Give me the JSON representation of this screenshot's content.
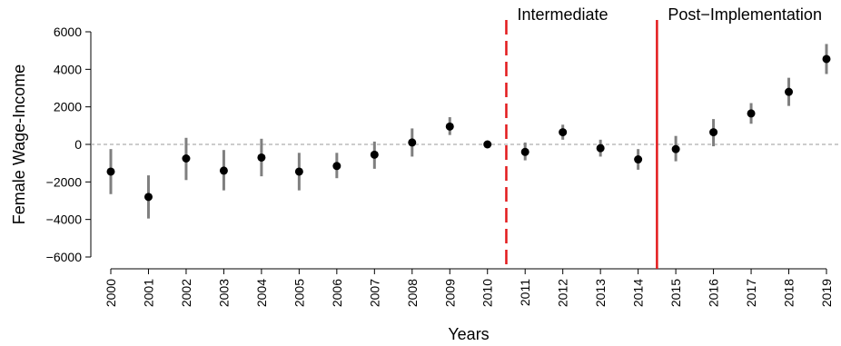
{
  "chart_data": {
    "type": "scatter",
    "title": "",
    "xlabel": "Years",
    "ylabel": "Female Wage-Income",
    "ylim": [
      -6000,
      6000
    ],
    "yticks": [
      -6000,
      -4000,
      -2000,
      0,
      2000,
      4000,
      6000
    ],
    "ytick_labels": [
      "−6000",
      "−4000",
      "−2000",
      "0",
      "2000",
      "4000",
      "6000"
    ],
    "x": [
      "2000",
      "2001",
      "2002",
      "2003",
      "2004",
      "2005",
      "2006",
      "2007",
      "2008",
      "2009",
      "2010",
      "2011",
      "2012",
      "2013",
      "2014",
      "2015",
      "2016",
      "2017",
      "2018",
      "2019"
    ],
    "estimates": [
      -1450,
      -2800,
      -750,
      -1400,
      -700,
      -1450,
      -1150,
      -550,
      100,
      950,
      0,
      -400,
      650,
      -200,
      -800,
      -250,
      650,
      1650,
      2800,
      4550
    ],
    "ci_low": [
      -2650,
      -3950,
      -1900,
      -2450,
      -1700,
      -2450,
      -1800,
      -1300,
      -650,
      500,
      0,
      -850,
      250,
      -650,
      -1350,
      -900,
      -100,
      1100,
      2050,
      3750
    ],
    "ci_high": [
      -250,
      -1650,
      350,
      -300,
      300,
      -450,
      -450,
      150,
      850,
      1450,
      0,
      100,
      1050,
      250,
      -250,
      450,
      1350,
      2200,
      3550,
      5350
    ],
    "zero_line": 0,
    "vlines": [
      {
        "at": "2010.5",
        "label": "Intermediate",
        "style": "dashed",
        "color": "#e31a1c"
      },
      {
        "at": "2014.5",
        "label": "Post−Implementation",
        "style": "solid",
        "color": "#e31a1c"
      }
    ],
    "colors": {
      "point": "#000000",
      "errorbar": "#7f7f7f",
      "zero_line": "#999999",
      "axis": "#000000"
    },
    "grid": false,
    "legend": "none"
  }
}
